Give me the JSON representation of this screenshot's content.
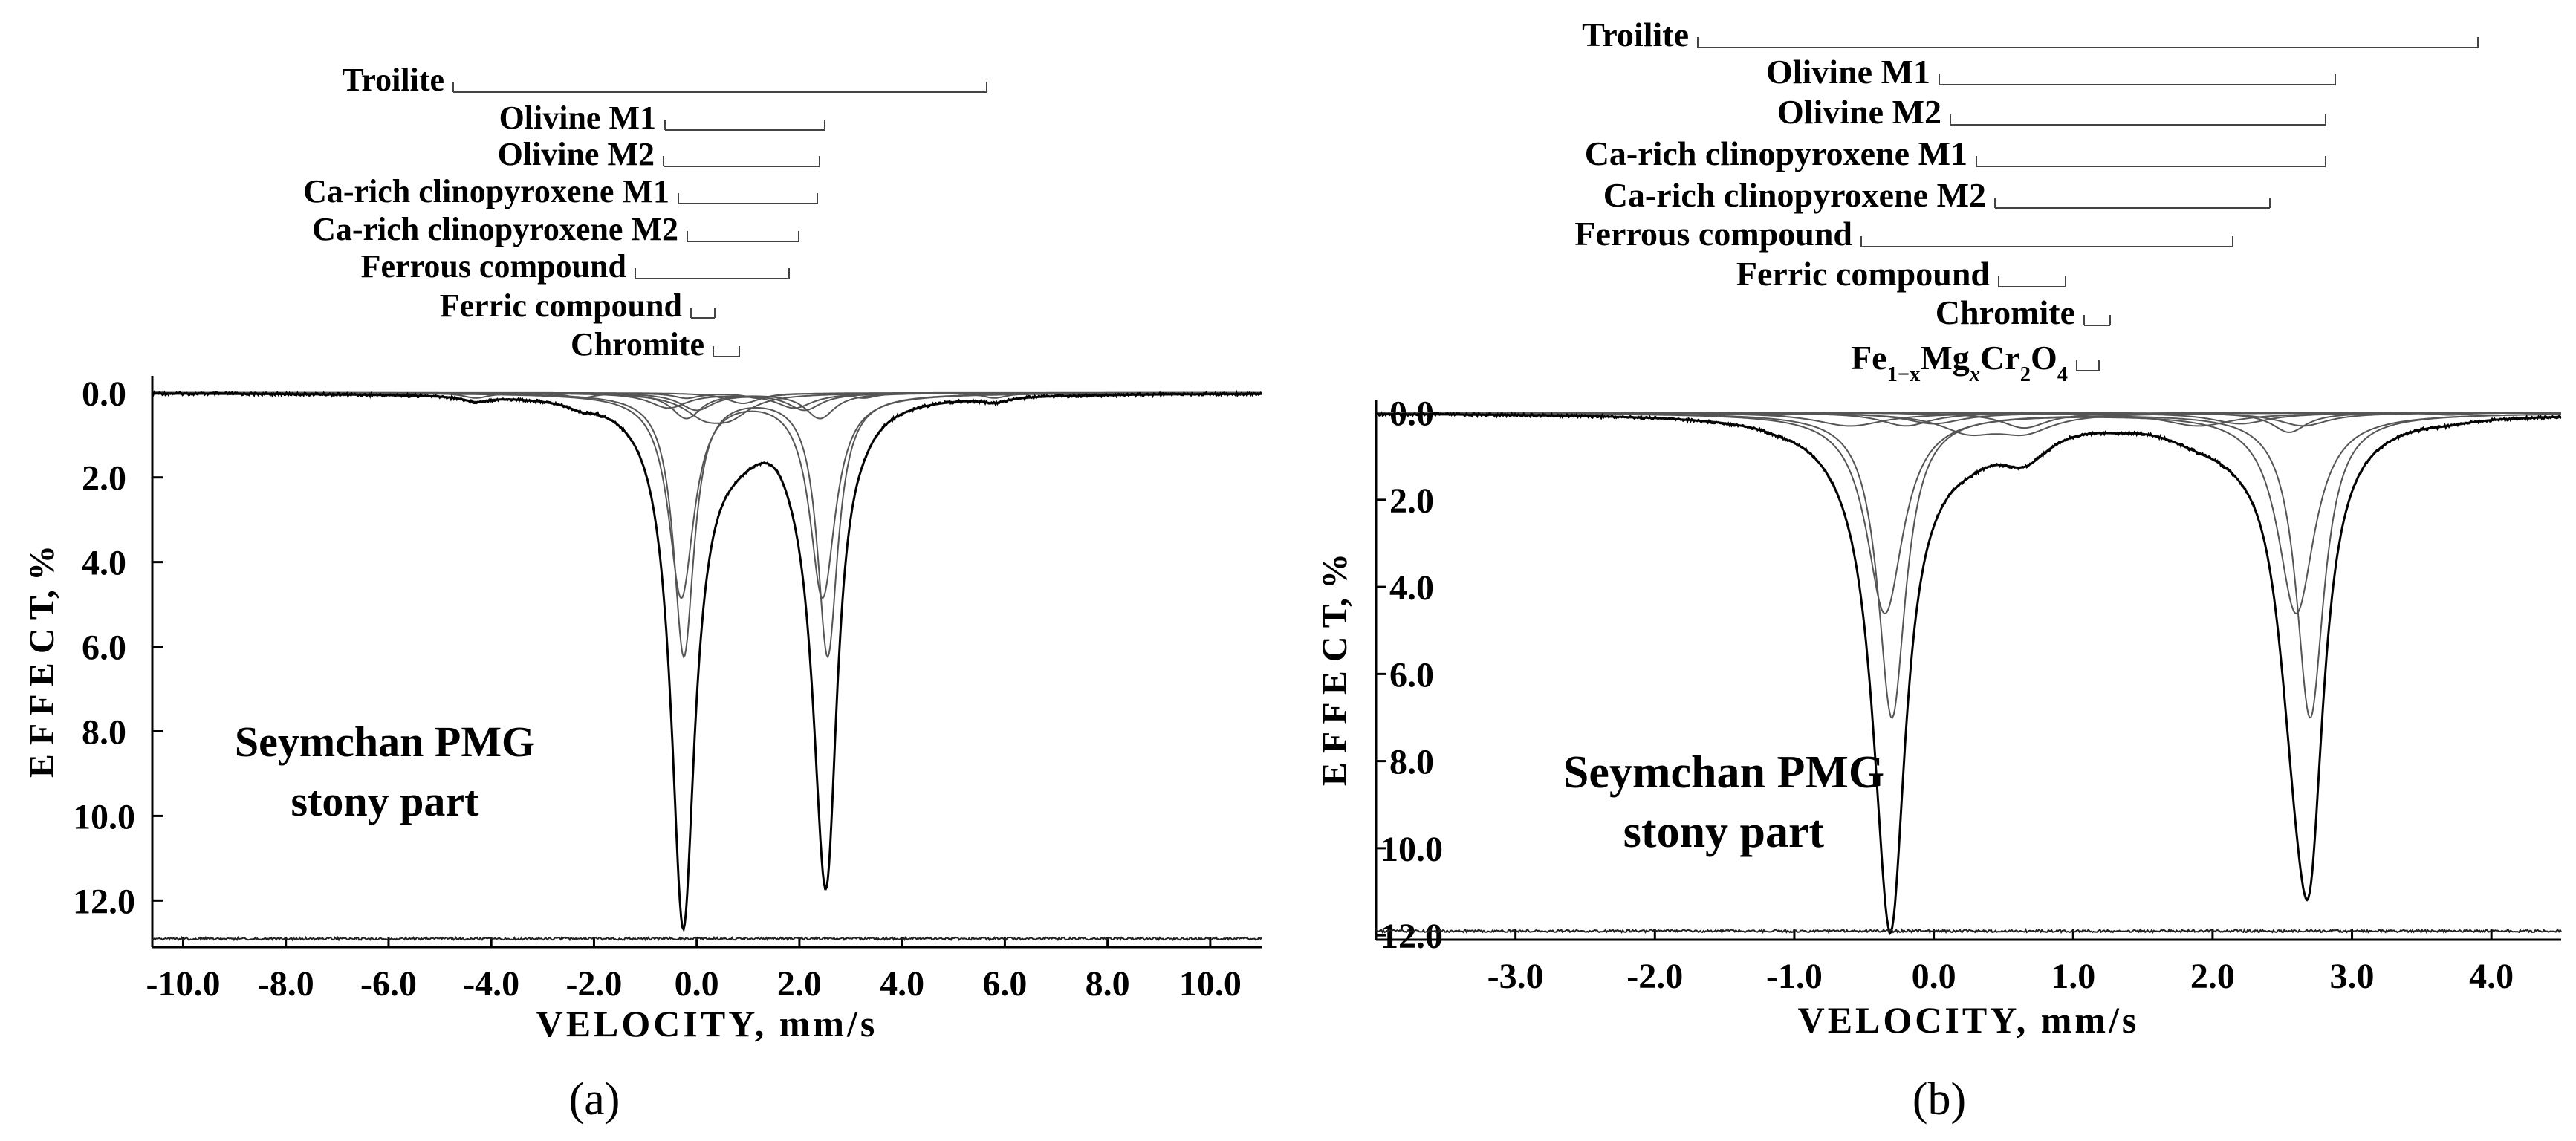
{
  "figure": {
    "panel_labels": [
      "(a)",
      "(b)"
    ]
  },
  "chart_data": [
    {
      "type": "line",
      "panel": "(a)",
      "xlabel": "VELOCITY,  mm/s",
      "ylabel": "E F F E C T,  %",
      "xlim": [
        -10.6,
        11.0
      ],
      "ylim": [
        13.1,
        -0.4
      ],
      "xticks": [
        -10,
        -8,
        -6,
        -4,
        -2,
        0,
        2,
        4,
        6,
        8,
        10
      ],
      "xtick_labels": [
        "-10.0",
        "-8.0",
        "-6.0",
        "-4.0",
        "-2.0",
        "0.0",
        "2.0",
        "4.0",
        "6.0",
        "8.0",
        "10.0"
      ],
      "yticks": [
        0,
        2,
        4,
        6,
        8,
        10,
        12
      ],
      "ytick_labels": [
        "0.0",
        "2.0",
        "4.0",
        "6.0",
        "8.0",
        "10.0",
        "12.0"
      ],
      "annotation": [
        "Seymchan PMG",
        "stony part"
      ],
      "residual_baseline": 12.9,
      "components": [
        {
          "name": "Troilite",
          "lines": [
            -4.3,
            -2.25,
            -0.2,
            1.2,
            3.25,
            5.8
          ],
          "depth": 0.12,
          "width": 0.3
        },
        {
          "name": "Olivine M1",
          "lines": [
            -0.25,
            2.55
          ],
          "depth": 6.2,
          "width": 0.24
        },
        {
          "name": "Olivine M2",
          "lines": [
            -0.3,
            2.45
          ],
          "depth": 4.8,
          "width": 0.3
        },
        {
          "name": "Ca-rich clinopyroxene M1",
          "lines": [
            -0.2,
            2.4
          ],
          "depth": 0.6,
          "width": 0.35
        },
        {
          "name": "Ca-rich clinopyroxene M2",
          "lines": [
            0.0,
            2.1
          ],
          "depth": 0.4,
          "width": 0.4
        },
        {
          "name": "Ferrous compound",
          "lines": [
            -0.55,
            1.9
          ],
          "depth": 0.35,
          "width": 0.45
        },
        {
          "name": "Ferric compound",
          "lines": [
            0.15,
            0.65
          ],
          "depth": 0.45,
          "width": 0.5
        },
        {
          "name": "Chromite",
          "lines": [
            0.9
          ],
          "depth": 0.25,
          "width": 0.4
        }
      ]
    },
    {
      "type": "line",
      "panel": "(b)",
      "xlabel": "VELOCITY,  mm/s",
      "ylabel": "E F F E C T,  %",
      "xlim": [
        -4.0,
        4.5
      ],
      "ylim": [
        12.1,
        -0.3
      ],
      "xticks": [
        -3,
        -2,
        -1,
        0,
        1,
        2,
        3,
        4
      ],
      "xtick_labels": [
        "-3.0",
        "-2.0",
        "-1.0",
        "0.0",
        "1.0",
        "2.0",
        "3.0",
        "4.0"
      ],
      "yticks": [
        0,
        2,
        4,
        6,
        8,
        10,
        12
      ],
      "ytick_labels": [
        "0.0",
        "2.0",
        "4.0",
        "6.0",
        "8.0",
        "10.0",
        "12.0"
      ],
      "annotation": [
        "Seymchan PMG",
        "stony part"
      ],
      "residual_baseline": 11.9,
      "components": [
        {
          "name": "Troilite",
          "lines": [
            -1.1,
            0.0,
            1.3,
            3.7
          ],
          "depth": 0.05,
          "width": 0.15
        },
        {
          "name": "Olivine M1",
          "lines": [
            -0.3,
            2.7
          ],
          "depth": 7.0,
          "width": 0.12
        },
        {
          "name": "Olivine M2",
          "lines": [
            -0.35,
            2.6
          ],
          "depth": 4.6,
          "width": 0.16
        },
        {
          "name": "Ca-rich clinopyroxene M1",
          "lines": [
            -0.2,
            2.65
          ],
          "depth": 0.3,
          "width": 0.22
        },
        {
          "name": "Ca-rich clinopyroxene M2",
          "lines": [
            0.0,
            2.2
          ],
          "depth": 0.25,
          "width": 0.25
        },
        {
          "name": "Ferrous compound",
          "lines": [
            -0.6,
            1.9
          ],
          "depth": 0.3,
          "width": 0.3
        },
        {
          "name": "Ferric compound",
          "lines": [
            0.25,
            0.65
          ],
          "depth": 0.4,
          "width": 0.25
        },
        {
          "name": "Chromite",
          "lines": [
            2.55
          ],
          "depth": 0.45,
          "width": 0.15
        },
        {
          "name": "Fe1−xMgxCr2O4",
          "lines": [
            0.65
          ],
          "depth": 0.35,
          "width": 0.2
        }
      ]
    }
  ]
}
